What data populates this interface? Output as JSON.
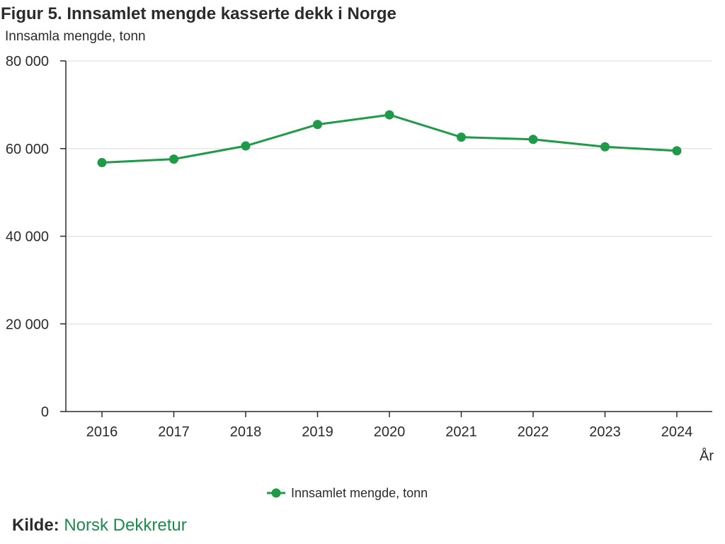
{
  "title": "Figur 5. Innsamlet mengde kasserte dekk i Norge",
  "subtitle": "Innsamla mengde, tonn",
  "source": {
    "label": "Kilde:",
    "value": "Norsk Dekkretur"
  },
  "colors": {
    "series": "#1f9a48",
    "axis": "#2b2b2b",
    "grid": "#dcdcdc",
    "source_link": "#1e8a4c"
  },
  "chart_data": {
    "type": "line",
    "title": "Figur 5. Innsamlet mengde kasserte dekk i Norge",
    "ylabel": "Innsamla mengde, tonn",
    "xlabel": "År",
    "categories": [
      "2016",
      "2017",
      "2018",
      "2019",
      "2020",
      "2021",
      "2022",
      "2023",
      "2024"
    ],
    "series": [
      {
        "name": "Innsamlet mengde, tonn",
        "values": [
          56800,
          57600,
          60600,
          65500,
          67700,
          62600,
          62100,
          60400,
          59500
        ]
      }
    ],
    "ylim": [
      0,
      80000
    ],
    "yticks": [
      0,
      20000,
      40000,
      60000,
      80000
    ],
    "ytick_labels": [
      "0",
      "20 000",
      "40 000",
      "60 000",
      "80 000"
    ],
    "grid": true,
    "legend_position": "bottom-center"
  }
}
